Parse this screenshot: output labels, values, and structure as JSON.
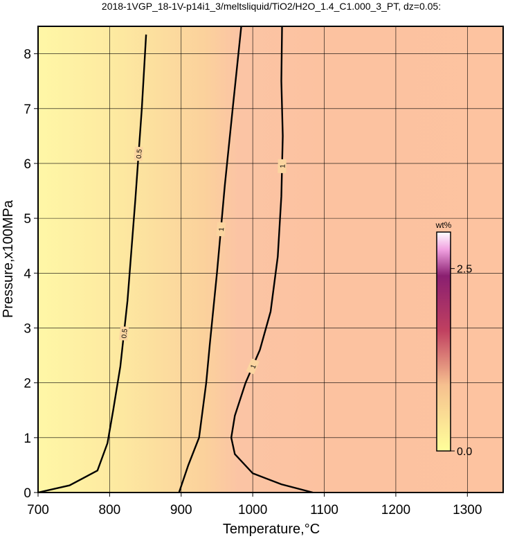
{
  "chart_data": {
    "type": "contour",
    "title": "2018-1VGP_18-1V-p14i1_3/meltsliquid/TiO2/H2O_1.4_C1.000_3_PT, dz=0.05:",
    "xlabel": "Temperature,°C",
    "ylabel": "Pressure,x100MPa",
    "xlim": [
      700,
      1350
    ],
    "ylim": [
      0,
      8.5
    ],
    "xticks": [
      700,
      800,
      900,
      1000,
      1100,
      1200,
      1300
    ],
    "yticks": [
      0,
      1,
      2,
      3,
      4,
      5,
      6,
      7,
      8
    ],
    "grid": true,
    "contours": [
      {
        "level": 0.5,
        "x": [
          700,
          744,
          783,
          797,
          805,
          815,
          825,
          836,
          845,
          851
        ],
        "y": [
          0,
          0.13,
          0.4,
          0.9,
          1.5,
          2.3,
          3.5,
          5.35,
          7,
          8.35
        ]
      },
      {
        "level": 1,
        "x": [
          897,
          910,
          925,
          930,
          935,
          940,
          950,
          961,
          972,
          984
        ],
        "y": [
          0,
          0.5,
          1,
          1.5,
          2,
          2.7,
          4,
          5.6,
          7,
          8.5
        ]
      },
      {
        "level": 1,
        "x": [
          1084,
          1040,
          1000,
          975,
          970,
          975,
          990,
          1010,
          1025,
          1035,
          1040,
          1042,
          1040,
          1041
        ],
        "y": [
          0,
          0.15,
          0.35,
          0.7,
          1.0,
          1.4,
          2.0,
          2.6,
          3.3,
          4.3,
          5.4,
          6.5,
          7.5,
          8.5
        ]
      }
    ],
    "colorbar": {
      "label": "wt%",
      "lim": [
        0,
        3.0
      ],
      "ticks": [
        {
          "value": 0,
          "label": "0.0"
        },
        {
          "value": 2.5,
          "label": "2.5"
        }
      ]
    }
  }
}
